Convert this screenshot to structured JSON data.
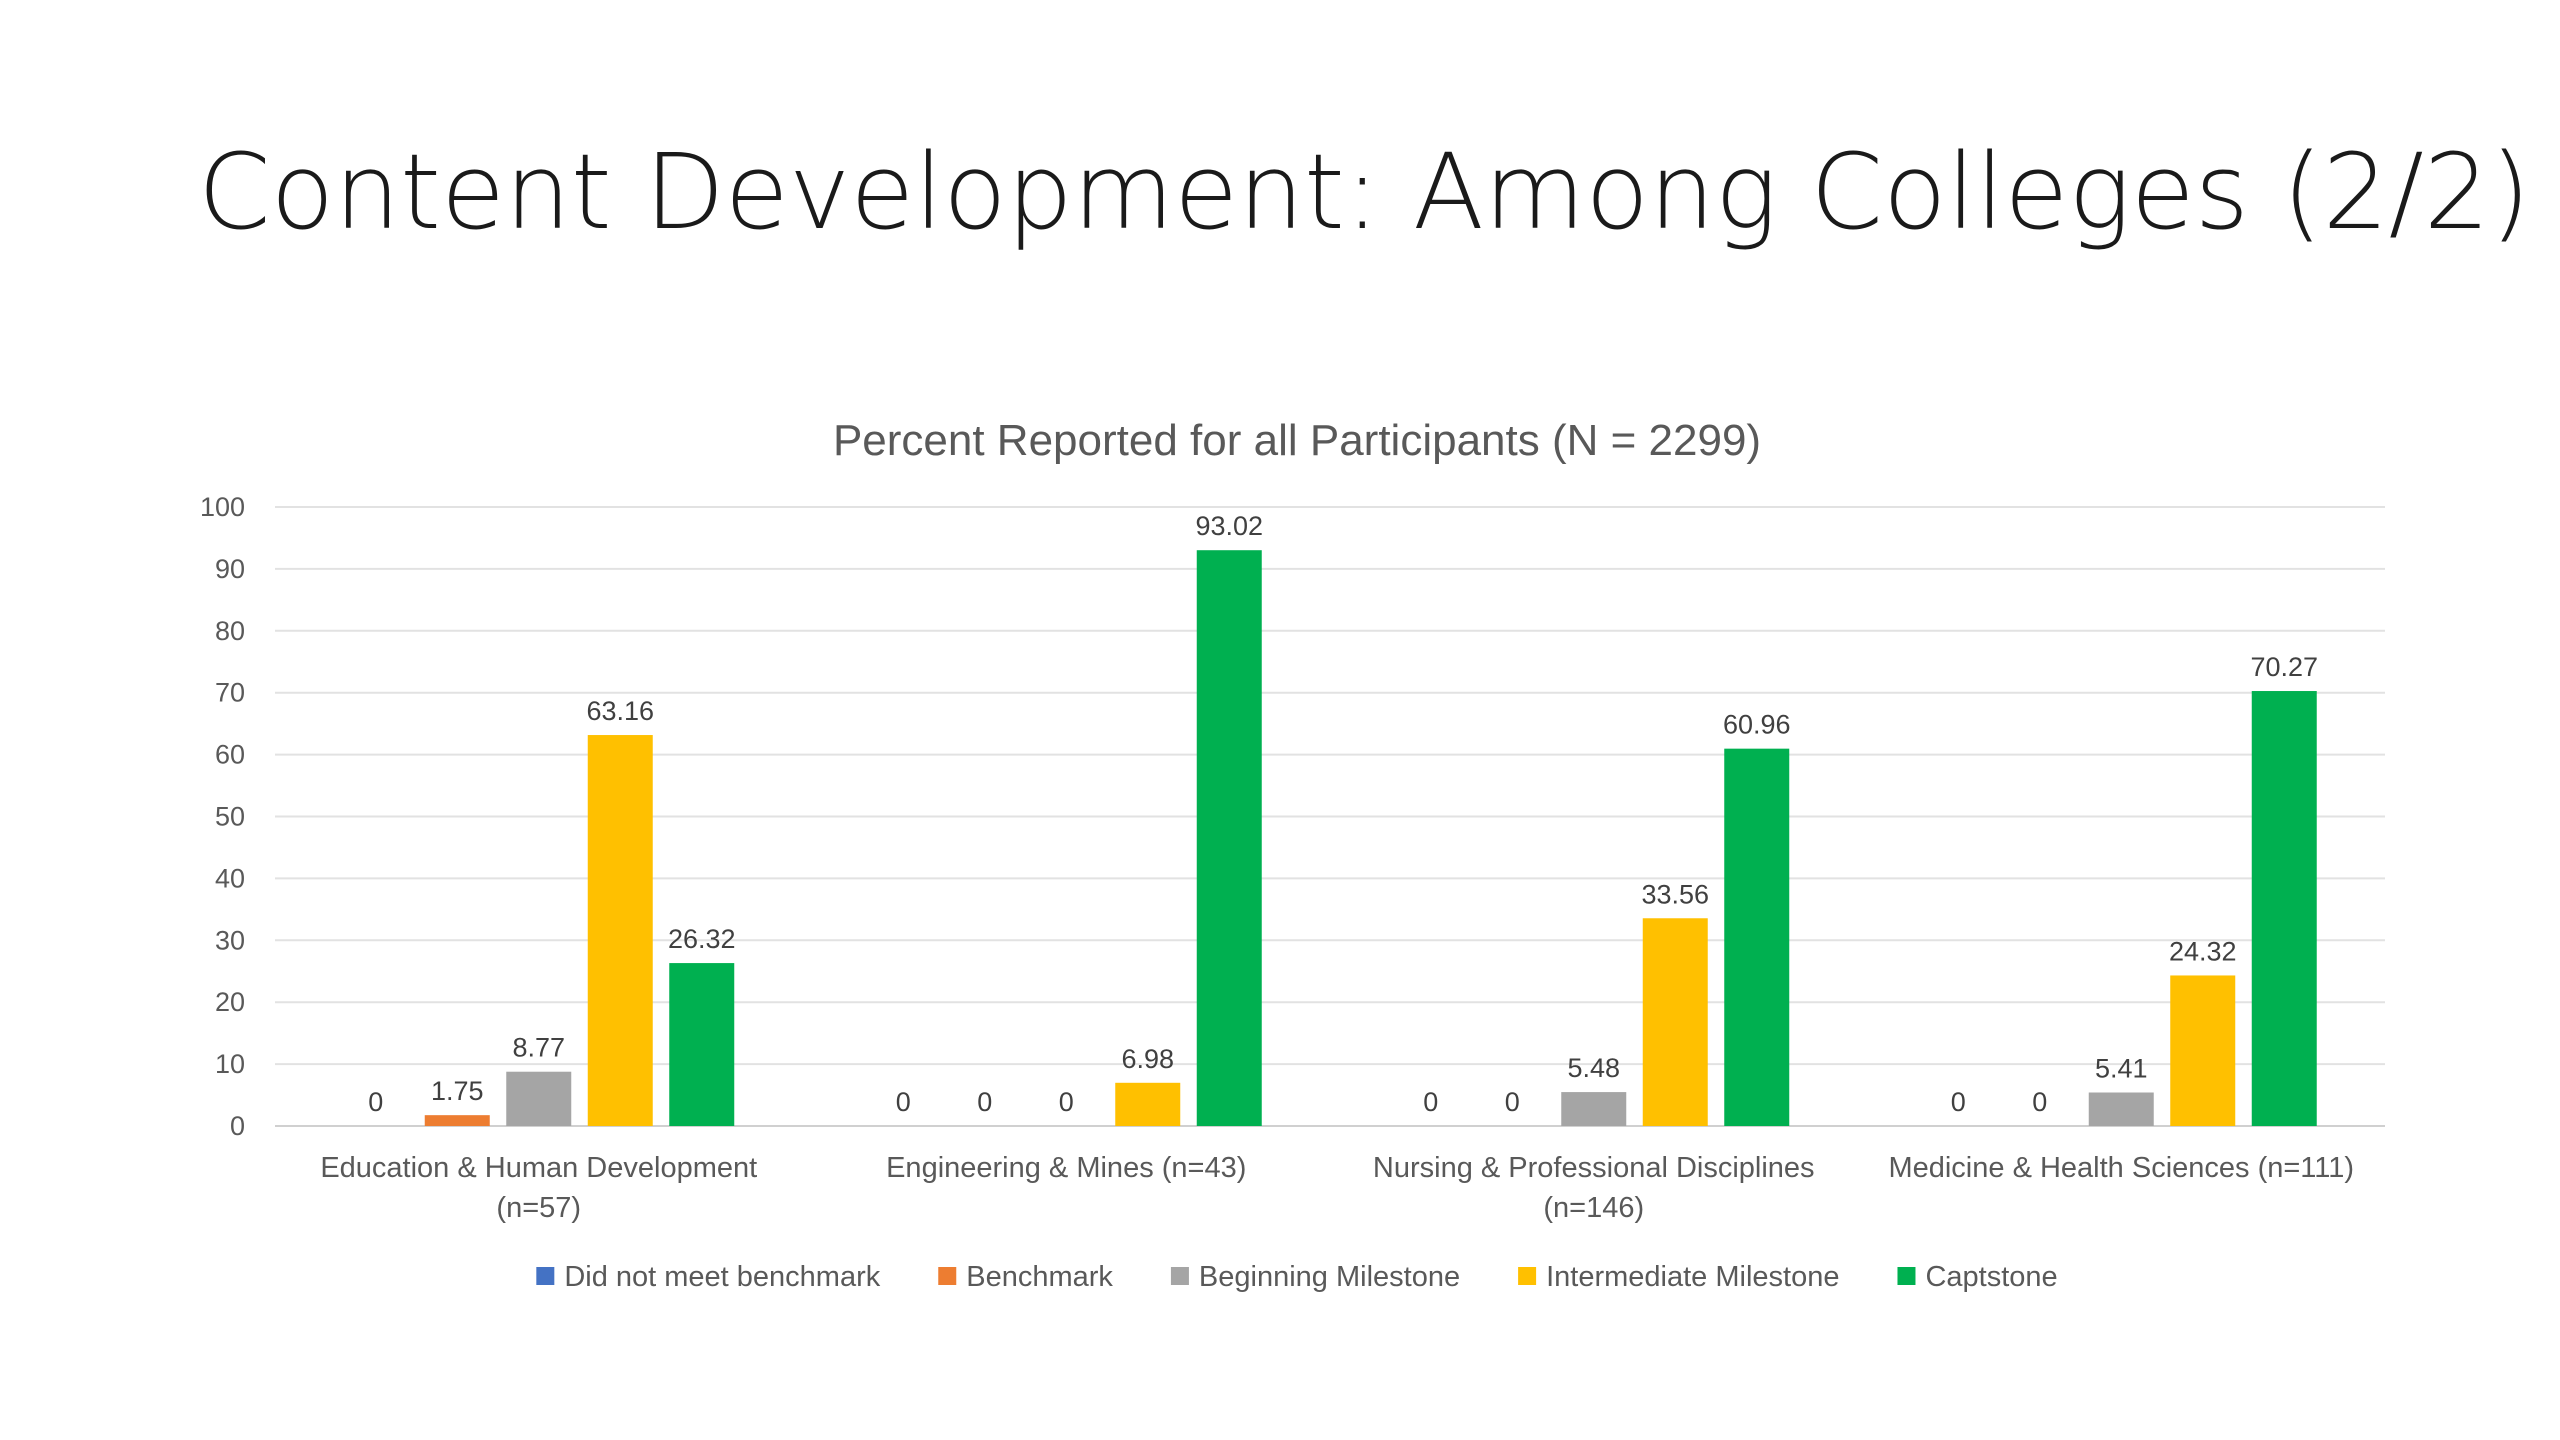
{
  "slide": {
    "title": "Content Development: Among Colleges (2/2)"
  },
  "chart_data": {
    "type": "bar",
    "title": "Percent Reported for all Participants (N = 2299)",
    "xlabel": "",
    "ylabel": "",
    "ylim": [
      0,
      100
    ],
    "yticks": [
      0,
      10,
      20,
      30,
      40,
      50,
      60,
      70,
      80,
      90,
      100
    ],
    "grid": true,
    "legend_position": "bottom",
    "categories": [
      [
        "Education & Human Development",
        "(n=57)"
      ],
      [
        "Engineering & Mines (n=43)"
      ],
      [
        "Nursing & Professional Disciplines",
        "(n=146)"
      ],
      [
        "Medicine & Health Sciences (n=111)"
      ]
    ],
    "series": [
      {
        "name": "Did not meet benchmark",
        "color": "#4472C4",
        "values": [
          0,
          0,
          0,
          0
        ],
        "labels": [
          "0",
          "0",
          "0",
          "0"
        ]
      },
      {
        "name": "Benchmark",
        "color": "#ED7D31",
        "values": [
          1.75,
          0,
          0,
          0
        ],
        "labels": [
          "1.75",
          "0",
          "0",
          "0"
        ]
      },
      {
        "name": "Beginning Milestone",
        "color": "#A5A5A5",
        "values": [
          8.77,
          0,
          5.48,
          5.41
        ],
        "labels": [
          "8.77",
          "0",
          "5.48",
          "5.41"
        ]
      },
      {
        "name": "Intermediate Milestone",
        "color": "#FFC000",
        "values": [
          63.16,
          6.98,
          33.56,
          24.32
        ],
        "labels": [
          "63.16",
          "6.98",
          "33.56",
          "24.32"
        ]
      },
      {
        "name": "Captstone",
        "color": "#00B050",
        "values": [
          26.32,
          93.02,
          60.96,
          70.27
        ],
        "labels": [
          "26.32",
          "93.02",
          "60.96",
          "70.27"
        ]
      }
    ]
  }
}
